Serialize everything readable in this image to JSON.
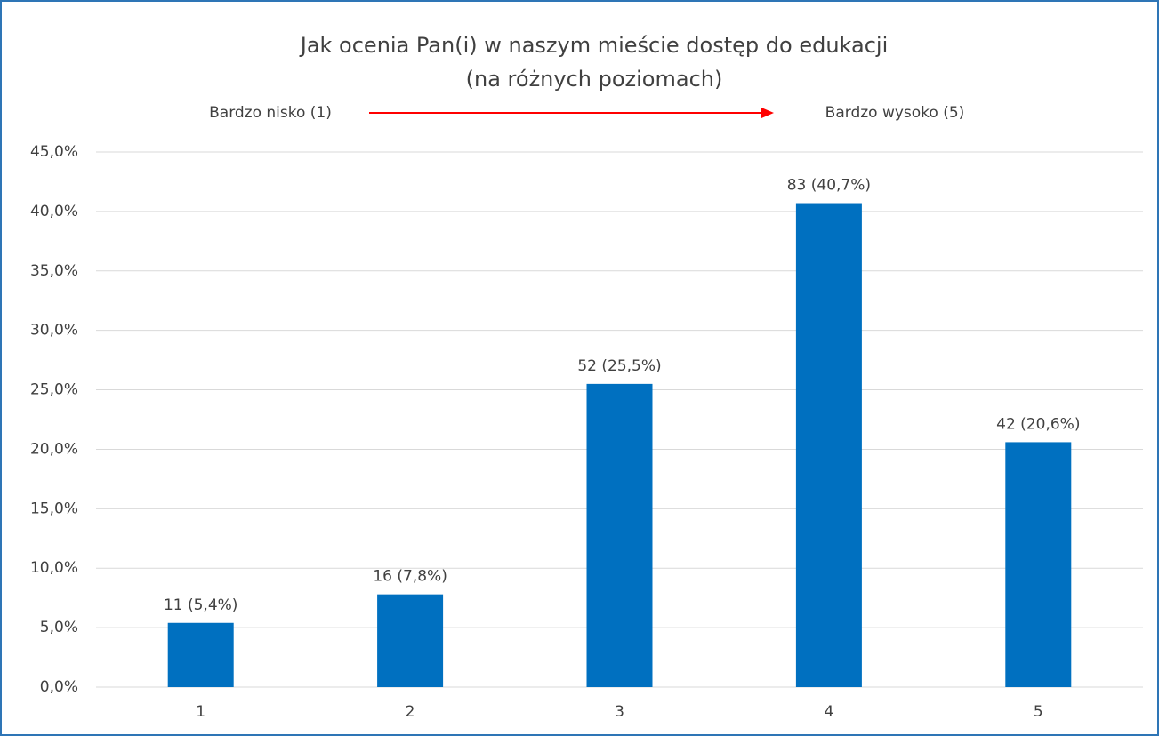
{
  "chart_data": {
    "type": "bar",
    "title_lines": [
      "Jak ocenia Pan(i) w naszym mieście dostęp do edukacji",
      "(na różnych poziomach)"
    ],
    "annotations": [
      "Bardzo nisko (1)",
      "Bardzo wysoko (5)"
    ],
    "arrow_color": "#ff0000",
    "categories": [
      "1",
      "2",
      "3",
      "4",
      "5"
    ],
    "values": [
      5.4,
      7.8,
      25.5,
      40.7,
      20.6
    ],
    "value_labels": [
      "11 (5,4%)",
      "16 (7,8%)",
      "52 (25,5%)",
      "83 (40,7%)",
      "42 (20,6%)"
    ],
    "color": "#0070c0",
    "ylim": [
      0,
      45
    ],
    "yticks": [
      {
        "value": 0,
        "label": "0,0%"
      },
      {
        "value": 5,
        "label": "5,0%"
      },
      {
        "value": 10,
        "label": "10,0%"
      },
      {
        "value": 15,
        "label": "15,0%"
      },
      {
        "value": 20,
        "label": "20,0%"
      },
      {
        "value": 25,
        "label": "25,0%"
      },
      {
        "value": 30,
        "label": "30,0%"
      },
      {
        "value": 35,
        "label": "35,0%"
      },
      {
        "value": 40,
        "label": "40,0%"
      },
      {
        "value": 45,
        "label": "45,0%"
      }
    ],
    "grid": true
  }
}
